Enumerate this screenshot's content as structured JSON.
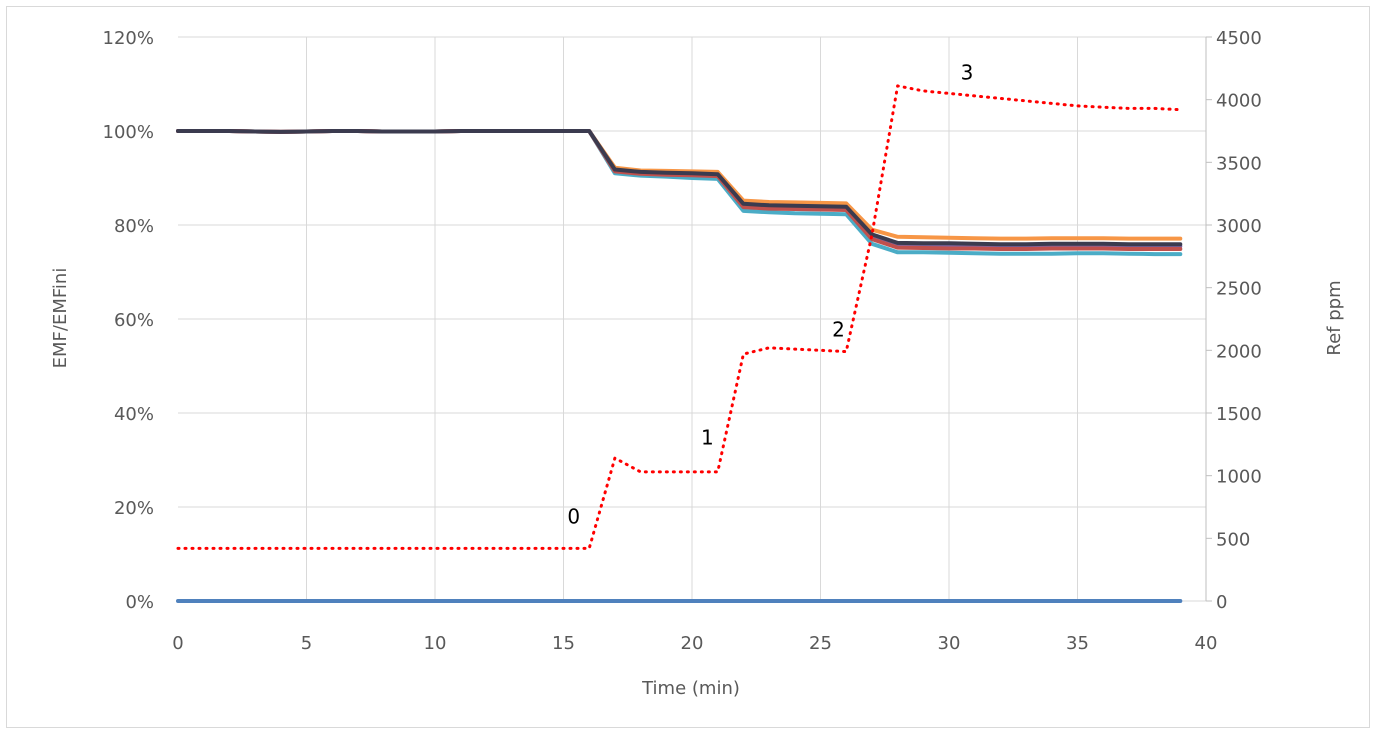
{
  "chart_data": {
    "type": "line",
    "xlabel": "Time (min)",
    "ylabel": "EMF/EMFini",
    "y2label": "Ref ppm",
    "xlim": [
      0,
      40
    ],
    "xticks": [
      0,
      5,
      10,
      15,
      20,
      25,
      30,
      35,
      40
    ],
    "ylim": [
      0,
      1.2
    ],
    "yticks": [
      "0%",
      "20%",
      "40%",
      "60%",
      "80%",
      "100%",
      "120%"
    ],
    "y2lim": [
      0,
      4500
    ],
    "y2ticks": [
      0,
      500,
      1000,
      1500,
      2000,
      2500,
      3000,
      3500,
      4000,
      4500
    ],
    "grid": true,
    "legend": "none",
    "x": [
      0,
      1,
      2,
      3,
      4,
      5,
      6,
      7,
      8,
      9,
      10,
      11,
      12,
      13,
      14,
      15,
      16,
      17,
      18,
      19,
      20,
      21,
      22,
      23,
      24,
      25,
      26,
      27,
      28,
      29,
      30,
      31,
      32,
      33,
      34,
      35,
      36,
      37,
      38,
      39
    ],
    "series": [
      {
        "axis": "left",
        "color": "#4BACC6",
        "values": [
          1.0,
          1.0,
          1.0,
          0.999,
          0.998,
          0.999,
          1.0,
          1.0,
          0.999,
          0.999,
          0.999,
          1.0,
          1.0,
          1.0,
          1.0,
          1.0,
          1.0,
          0.91,
          0.905,
          0.903,
          0.9,
          0.898,
          0.83,
          0.827,
          0.825,
          0.824,
          0.823,
          0.76,
          0.742,
          0.742,
          0.741,
          0.74,
          0.739,
          0.739,
          0.739,
          0.74,
          0.74,
          0.739,
          0.738,
          0.738
        ]
      },
      {
        "axis": "left",
        "color": "#F79646",
        "values": [
          1.0,
          1.0,
          1.0,
          0.999,
          0.998,
          0.999,
          1.0,
          1.0,
          0.999,
          0.999,
          0.999,
          1.0,
          1.0,
          1.0,
          1.0,
          1.0,
          1.0,
          0.922,
          0.916,
          0.915,
          0.914,
          0.913,
          0.852,
          0.849,
          0.848,
          0.847,
          0.846,
          0.79,
          0.775,
          0.774,
          0.773,
          0.772,
          0.771,
          0.771,
          0.772,
          0.772,
          0.772,
          0.771,
          0.771,
          0.771
        ]
      },
      {
        "axis": "left",
        "color": "#8064A2",
        "values": [
          1.0,
          1.0,
          1.0,
          0.999,
          0.998,
          0.999,
          1.0,
          1.0,
          0.999,
          0.999,
          0.999,
          1.0,
          1.0,
          1.0,
          1.0,
          1.0,
          1.0,
          0.916,
          0.911,
          0.909,
          0.908,
          0.906,
          0.842,
          0.839,
          0.838,
          0.837,
          0.836,
          0.775,
          0.758,
          0.757,
          0.757,
          0.756,
          0.755,
          0.755,
          0.756,
          0.756,
          0.756,
          0.755,
          0.755,
          0.755
        ]
      },
      {
        "axis": "left",
        "color": "#C0504D",
        "values": [
          1.0,
          1.0,
          1.0,
          0.999,
          0.998,
          0.999,
          1.0,
          1.0,
          0.999,
          0.999,
          0.999,
          1.0,
          1.0,
          1.0,
          1.0,
          1.0,
          1.0,
          0.914,
          0.909,
          0.907,
          0.906,
          0.904,
          0.838,
          0.835,
          0.834,
          0.833,
          0.832,
          0.77,
          0.752,
          0.751,
          0.75,
          0.75,
          0.749,
          0.749,
          0.75,
          0.75,
          0.75,
          0.749,
          0.749,
          0.749
        ]
      },
      {
        "axis": "left",
        "color": "#3B3B4F",
        "values": [
          1.0,
          1.0,
          1.0,
          0.999,
          0.998,
          0.999,
          1.0,
          1.0,
          0.999,
          0.999,
          0.999,
          1.0,
          1.0,
          1.0,
          1.0,
          1.0,
          1.0,
          0.918,
          0.913,
          0.911,
          0.91,
          0.908,
          0.845,
          0.842,
          0.841,
          0.84,
          0.839,
          0.78,
          0.762,
          0.761,
          0.761,
          0.76,
          0.759,
          0.759,
          0.76,
          0.76,
          0.76,
          0.759,
          0.759,
          0.759
        ]
      },
      {
        "axis": "left",
        "color": "#4F81BD",
        "values": [
          0,
          0,
          0,
          0,
          0,
          0,
          0,
          0,
          0,
          0,
          0,
          0,
          0,
          0,
          0,
          0,
          0,
          0,
          0,
          0,
          0,
          0,
          0,
          0,
          0,
          0,
          0,
          0,
          0,
          0,
          0,
          0,
          0,
          0,
          0,
          0,
          0,
          0,
          0,
          0
        ]
      },
      {
        "axis": "right",
        "color": "#FF0000",
        "dotted": true,
        "values": [
          420,
          420,
          420,
          420,
          420,
          420,
          420,
          420,
          420,
          420,
          420,
          420,
          420,
          420,
          420,
          420,
          420,
          1140,
          1030,
          1030,
          1030,
          1030,
          1970,
          2020,
          2010,
          2000,
          1990,
          2920,
          4110,
          4070,
          4050,
          4030,
          4010,
          3990,
          3970,
          3950,
          3940,
          3930,
          3930,
          3920
        ]
      }
    ],
    "annotations": [
      {
        "text": "0",
        "x": 15.4,
        "y2": 620
      },
      {
        "text": "1",
        "x": 20.6,
        "y2": 1250
      },
      {
        "text": "2",
        "x": 25.7,
        "y2": 2110
      },
      {
        "text": "3",
        "x": 30.7,
        "y2": 4160
      }
    ]
  }
}
